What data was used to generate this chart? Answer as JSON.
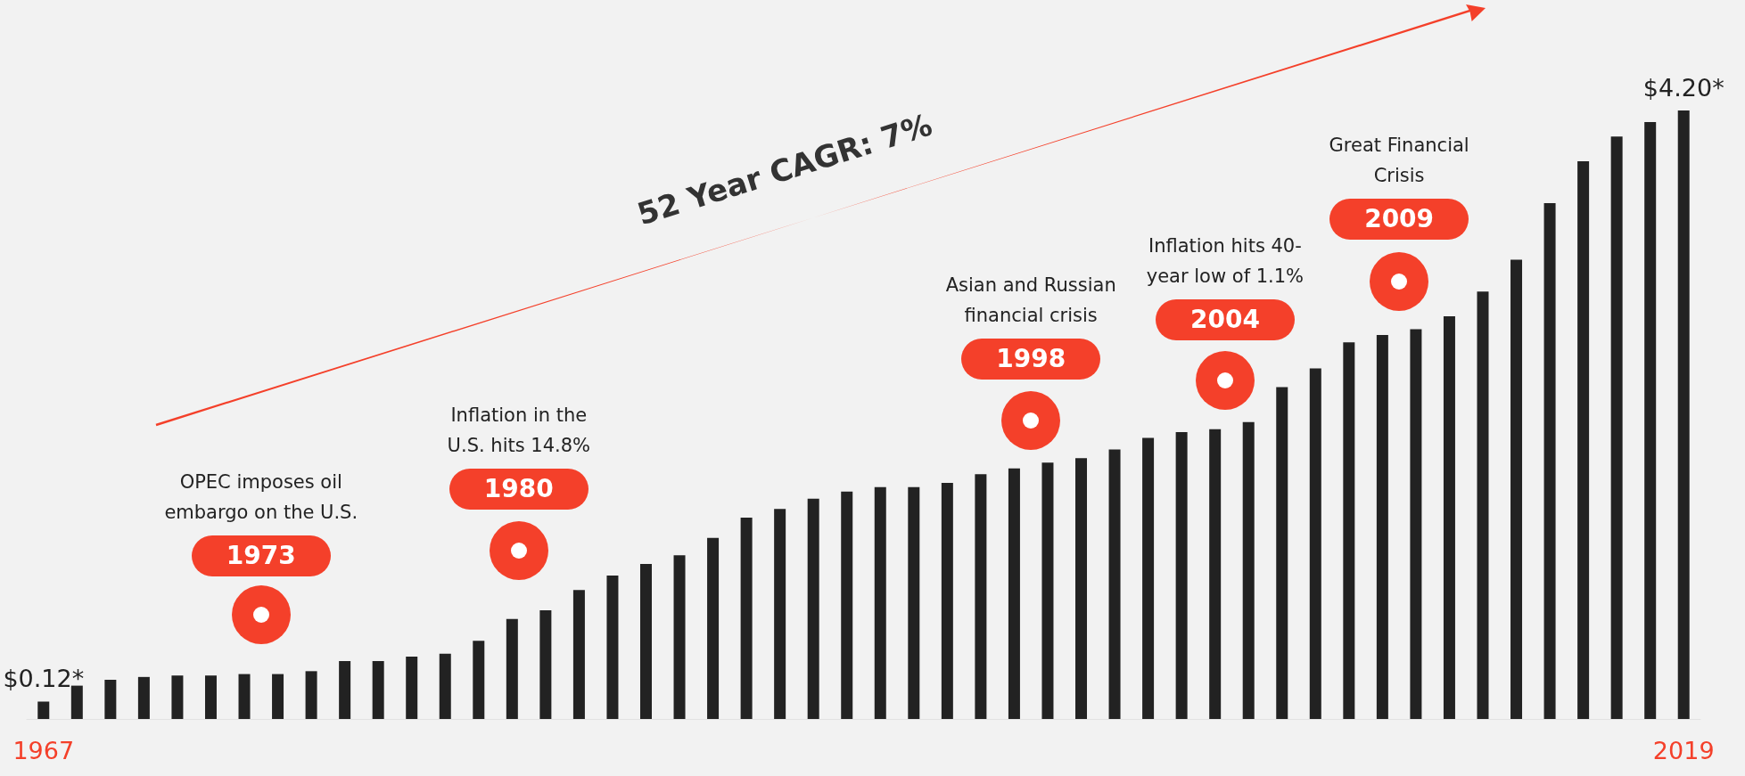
{
  "chart_data": {
    "type": "bar",
    "tick_labels": "x",
    "color": "#222222",
    "categories": [
      "1967",
      null,
      null,
      null,
      null,
      null,
      null,
      null,
      null,
      null,
      null,
      null,
      null,
      null,
      null,
      null,
      null,
      null,
      null,
      null,
      null,
      null,
      null,
      null,
      null,
      null,
      null,
      null,
      null,
      null,
      null,
      null,
      null,
      null,
      null,
      null,
      null,
      null,
      null,
      null,
      null,
      null,
      null,
      null,
      null,
      null,
      null,
      null,
      null,
      "2019"
    ],
    "values": [
      0.12,
      0.23,
      0.27,
      0.29,
      0.3,
      0.3,
      0.31,
      0.31,
      0.33,
      0.4,
      0.4,
      0.43,
      0.45,
      0.54,
      0.69,
      0.75,
      0.89,
      0.99,
      1.07,
      1.13,
      1.25,
      1.39,
      1.45,
      1.52,
      1.57,
      1.6,
      1.6,
      1.63,
      1.69,
      1.73,
      1.77,
      1.8,
      1.86,
      1.94,
      1.98,
      2.0,
      2.05,
      2.29,
      2.42,
      2.6,
      2.65,
      2.69,
      2.78,
      2.95,
      3.17,
      3.56,
      3.85,
      4.02,
      4.12,
      4.2
    ],
    "value_labels": [
      "$0.12*",
      null,
      null,
      null,
      null,
      null,
      null,
      null,
      null,
      null,
      null,
      null,
      null,
      null,
      null,
      null,
      null,
      null,
      null,
      null,
      null,
      null,
      null,
      null,
      null,
      null,
      null,
      null,
      null,
      null,
      null,
      null,
      null,
      null,
      null,
      null,
      null,
      null,
      null,
      null,
      null,
      null,
      null,
      null,
      null,
      null,
      null,
      null,
      null,
      "$4.20*"
    ],
    "annotations": [
      "52 Year CAGR: 7%",
      "OPEC imposes oil embargo on the U.S.",
      "1973",
      "Inflation in the U.S. hits 14.8%",
      "1980",
      "Asian and Russian financial crisis",
      "1998",
      "Inflation hits 40-year low of 1.1%",
      "2004",
      "Great Financial Crisis",
      "2009"
    ],
    "grid": false
  }
}
